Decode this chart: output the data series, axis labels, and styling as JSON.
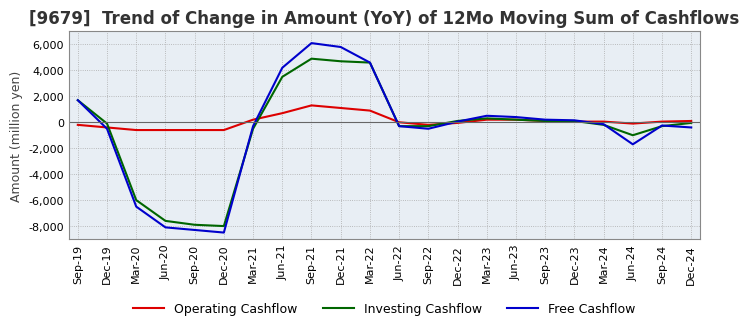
{
  "title": "[9679]  Trend of Change in Amount (YoY) of 12Mo Moving Sum of Cashflows",
  "ylabel": "Amount (million yen)",
  "ylim": [
    -9000,
    7000
  ],
  "yticks": [
    -8000,
    -6000,
    -4000,
    -2000,
    0,
    2000,
    4000,
    6000
  ],
  "x_labels": [
    "Sep-19",
    "Dec-19",
    "Mar-20",
    "Jun-20",
    "Sep-20",
    "Dec-20",
    "Mar-21",
    "Jun-21",
    "Sep-21",
    "Dec-21",
    "Mar-22",
    "Jun-22",
    "Sep-22",
    "Dec-22",
    "Mar-23",
    "Jun-23",
    "Sep-23",
    "Dec-23",
    "Mar-24",
    "Jun-24",
    "Sep-24",
    "Dec-24"
  ],
  "operating": [
    -200,
    -400,
    -600,
    -600,
    -600,
    -600,
    200,
    700,
    1300,
    1100,
    900,
    0,
    -200,
    -50,
    200,
    200,
    100,
    50,
    50,
    -100,
    50,
    100
  ],
  "investing": [
    1700,
    -100,
    -6000,
    -7600,
    -7900,
    -8000,
    -500,
    3500,
    4900,
    4700,
    4600,
    -300,
    -300,
    100,
    300,
    200,
    100,
    100,
    -200,
    -1000,
    -300,
    -50
  ],
  "free": [
    1700,
    -500,
    -6500,
    -8100,
    -8300,
    -8500,
    -300,
    4200,
    6100,
    5800,
    4600,
    -300,
    -500,
    50,
    500,
    400,
    200,
    150,
    -150,
    -1700,
    -250,
    -400
  ],
  "operating_color": "#dd0000",
  "investing_color": "#006600",
  "free_color": "#0000cc",
  "plot_bg_color": "#e8eef4",
  "background_color": "#ffffff",
  "grid_color": "#aaaaaa",
  "title_fontsize": 12,
  "label_fontsize": 9,
  "tick_fontsize": 8
}
